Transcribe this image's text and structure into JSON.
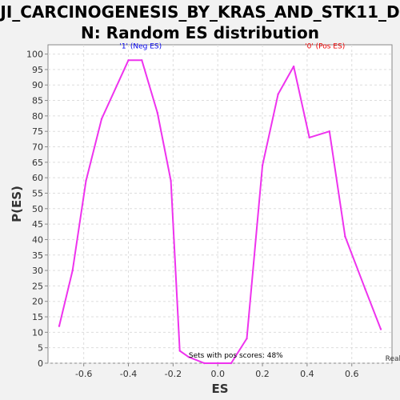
{
  "title_line1": "JI_CARCINOGENESIS_BY_KRAS_AND_STK11_D",
  "title_line2": "N: Random ES distribution",
  "chart_data": {
    "type": "line",
    "xlabel": "ES",
    "ylabel": "P(ES)",
    "xlim": [
      -0.76,
      0.78
    ],
    "ylim": [
      0,
      103
    ],
    "xticks": [
      -0.6,
      -0.4,
      -0.2,
      0.0,
      0.2,
      0.4,
      0.6
    ],
    "xtick_labels": [
      "-0.6",
      "-0.4",
      "-0.2",
      "0.0",
      "0.2",
      "0.4",
      "0.6"
    ],
    "yticks": [
      0,
      5,
      10,
      15,
      20,
      25,
      30,
      35,
      40,
      45,
      50,
      55,
      60,
      65,
      70,
      75,
      80,
      85,
      90,
      95,
      100
    ],
    "grid": true,
    "line_color": "#ee33ee",
    "series": [
      {
        "x": [
          -0.71,
          -0.65,
          -0.59,
          -0.52,
          -0.4,
          -0.34,
          -0.27,
          -0.21,
          -0.17,
          -0.13,
          -0.06,
          0.0,
          0.06,
          0.13,
          0.2,
          0.27,
          0.34,
          0.41,
          0.5,
          0.57,
          0.66,
          0.73
        ],
        "y": [
          12,
          30,
          59,
          79,
          98,
          98,
          81,
          59,
          4,
          2,
          0,
          0,
          0,
          8,
          64,
          87,
          96,
          73,
          75,
          41,
          24,
          11
        ]
      }
    ],
    "annotations": [
      {
        "text": "'1' (Neg ES)",
        "x": -0.44,
        "y": 101,
        "color": "#0000ee"
      },
      {
        "text": "'0' (Pos ES)",
        "x": 0.39,
        "y": 101,
        "color": "#ee0000"
      },
      {
        "text": "Sets with pos scores: 48%",
        "x": -0.13,
        "y": 1,
        "color": "#000000"
      },
      {
        "text": "Real E",
        "x": 0.75,
        "y": 0,
        "color": "#333333"
      }
    ]
  }
}
